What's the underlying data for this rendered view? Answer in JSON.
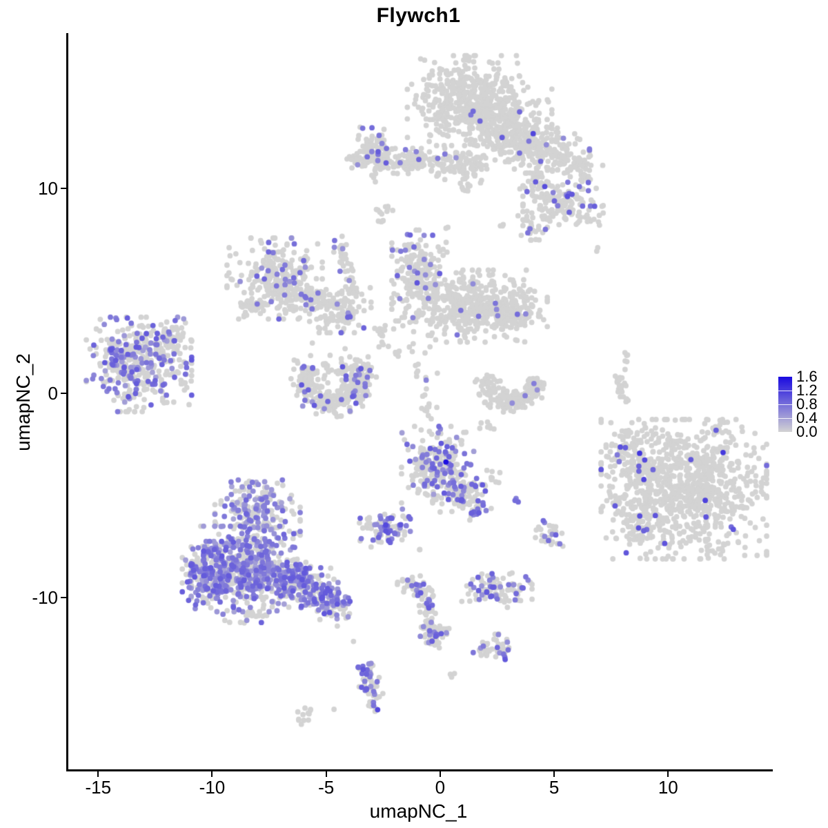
{
  "title": "Flywch1",
  "axes": {
    "x": {
      "label": "umapNC_1",
      "ticks": [
        -15,
        -10,
        -5,
        0,
        5,
        10
      ],
      "range": [
        -16.4,
        14.5
      ]
    },
    "y": {
      "label": "umapNC_2",
      "ticks": [
        -10,
        0,
        10
      ],
      "range": [
        -18.4,
        17.6
      ]
    }
  },
  "legend": {
    "tick_labels": [
      "1.6",
      "1.2",
      "0.8",
      "0.4",
      "0.0"
    ],
    "vmin": 0.0,
    "vmax": 1.6
  },
  "colors": {
    "low": "#d3d3d3",
    "high": "#1a0ae0",
    "gray_point": "#d3d3d3",
    "axis": "#000000"
  },
  "chart_data": {
    "type": "scatter",
    "title": "Flywch1",
    "xlabel": "umapNC_1",
    "ylabel": "umapNC_2",
    "xlim": [
      -16.4,
      14.5
    ],
    "ylim": [
      -18.4,
      17.6
    ],
    "legend_scale": {
      "min": 0.0,
      "max": 1.6,
      "breaks": [
        0.0,
        0.4,
        0.8,
        1.2,
        1.6
      ]
    },
    "point_radius": 3.9,
    "seed": 42,
    "description": "UMAP feature plot of Flywch1 expression; clusters given as generative specs (t: b=blob, a=arc, l=line; coords in data units; f=fraction expressing; v=[min,max] expression of expressing cells)",
    "clusters": [
      {
        "t": "b",
        "x": 1.0,
        "y": 14.3,
        "sx": 1.15,
        "sy": 1.0,
        "n": 380,
        "f": 0.012,
        "v": [
          0.5,
          0.9
        ]
      },
      {
        "t": "b",
        "x": 2.5,
        "y": 13.4,
        "sx": 1.05,
        "sy": 0.95,
        "n": 300,
        "f": 0.015,
        "v": [
          0.5,
          0.9
        ]
      },
      {
        "t": "b",
        "x": 3.6,
        "y": 12.2,
        "sx": 0.5,
        "sy": 0.5,
        "n": 80,
        "f": 0.02,
        "v": [
          0.5,
          0.9
        ]
      },
      {
        "t": "b",
        "x": 3.0,
        "y": 12.6,
        "sx": 0.45,
        "sy": 0.5,
        "n": 55,
        "f": 0.04,
        "v": [
          0.9,
          1.2
        ]
      },
      {
        "t": "b",
        "x": 4.7,
        "y": 11.8,
        "sx": 0.8,
        "sy": 0.55,
        "n": 120,
        "f": 0.02,
        "v": [
          0.5,
          0.8
        ]
      },
      {
        "t": "b",
        "x": 6.05,
        "y": 11.05,
        "sx": 0.45,
        "sy": 0.4,
        "n": 45,
        "f": 0.02,
        "v": [
          0.5,
          0.8
        ]
      },
      {
        "t": "b",
        "x": 4.05,
        "y": 10.3,
        "sx": 0.35,
        "sy": 0.4,
        "n": 40,
        "f": 0.05,
        "v": [
          0.8,
          1.1
        ]
      },
      {
        "t": "b",
        "x": 5.3,
        "y": 9.1,
        "sx": 0.8,
        "sy": 0.55,
        "n": 140,
        "f": 0.11,
        "v": [
          0.6,
          1.1
        ]
      },
      {
        "t": "b",
        "x": 3.95,
        "y": 8.25,
        "sx": 0.3,
        "sy": 0.35,
        "n": 25,
        "f": 0.06,
        "v": [
          0.5,
          0.9
        ]
      },
      {
        "t": "l",
        "x1": 1.9,
        "y1": 11.8,
        "x2": 0.9,
        "y2": 9.7,
        "w": 0.25,
        "n": 28,
        "f": 0.04,
        "v": [
          0.5,
          0.8
        ]
      },
      {
        "t": "b",
        "x": 2.6,
        "y": 8.3,
        "sx": 0.12,
        "sy": 0.12,
        "n": 3,
        "f": 0,
        "v": [
          0.5,
          0.8
        ]
      },
      {
        "t": "b",
        "x": 0.1,
        "y": 8.0,
        "sx": 0.1,
        "sy": 0.1,
        "n": 2,
        "f": 0,
        "v": [
          0.5,
          0.8
        ]
      },
      {
        "t": "b",
        "x": -2.9,
        "y": 11.9,
        "sx": 0.38,
        "sy": 0.5,
        "n": 85,
        "f": 0.1,
        "v": [
          0.6,
          1.0
        ]
      },
      {
        "t": "b",
        "x": -1.4,
        "y": 11.35,
        "sx": 1.05,
        "sy": 0.28,
        "n": 140,
        "f": 0.04,
        "v": [
          0.5,
          0.9
        ]
      },
      {
        "t": "b",
        "x": 0.75,
        "y": 11.1,
        "sx": 0.55,
        "sy": 0.3,
        "n": 55,
        "f": 0.03,
        "v": [
          0.5,
          0.9
        ]
      },
      {
        "t": "b",
        "x": -3.75,
        "y": 11.45,
        "sx": 0.2,
        "sy": 0.2,
        "n": 14,
        "f": 0,
        "v": [
          0.5,
          0.9
        ]
      },
      {
        "t": "b",
        "x": -3.0,
        "y": 10.5,
        "sx": 0.12,
        "sy": 0.15,
        "n": 4,
        "f": 0,
        "v": [
          0.5,
          0.9
        ]
      },
      {
        "t": "b",
        "x": -2.75,
        "y": 8.65,
        "sx": 0.15,
        "sy": 0.28,
        "n": 8,
        "f": 0,
        "v": [
          0.5,
          0.9
        ]
      },
      {
        "t": "b",
        "x": 6.8,
        "y": 7.0,
        "sx": 0.1,
        "sy": 0.1,
        "n": 2,
        "f": 0,
        "v": [
          0.5,
          0.9
        ]
      },
      {
        "t": "l",
        "x1": -4.5,
        "y1": 7.3,
        "x2": -3.85,
        "y2": 4.9,
        "w": 0.16,
        "n": 40,
        "f": 0.05,
        "v": [
          0.5,
          0.8
        ]
      },
      {
        "t": "b",
        "x": -4.5,
        "y": 7.6,
        "sx": 0.1,
        "sy": 0.1,
        "n": 2,
        "f": 0.9,
        "v": [
          0.7,
          0.9
        ]
      },
      {
        "t": "b",
        "x": -7.35,
        "y": 5.6,
        "sx": 0.95,
        "sy": 0.9,
        "n": 250,
        "f": 0.1,
        "v": [
          0.5,
          0.9
        ]
      },
      {
        "t": "b",
        "x": -8.3,
        "y": 4.3,
        "sx": 0.35,
        "sy": 0.3,
        "n": 28,
        "f": 0.08,
        "v": [
          0.5,
          0.9
        ]
      },
      {
        "t": "b",
        "x": -5.9,
        "y": 4.6,
        "sx": 0.6,
        "sy": 0.35,
        "n": 70,
        "f": 0.04,
        "v": [
          0.5,
          0.9
        ],
        "rot": -15
      },
      {
        "t": "b",
        "x": -4.55,
        "y": 4.05,
        "sx": 0.65,
        "sy": 0.5,
        "n": 115,
        "f": 0.07,
        "v": [
          0.5,
          0.9
        ]
      },
      {
        "t": "b",
        "x": -1.0,
        "y": 6.1,
        "sx": 0.55,
        "sy": 0.85,
        "n": 150,
        "f": 0.13,
        "v": [
          0.5,
          1.0
        ]
      },
      {
        "t": "b",
        "x": 1.2,
        "y": 4.25,
        "sx": 1.55,
        "sy": 0.8,
        "n": 470,
        "f": 0.02,
        "v": [
          0.5,
          0.9
        ]
      },
      {
        "t": "b",
        "x": 2.95,
        "y": 4.05,
        "sx": 0.5,
        "sy": 0.5,
        "n": 80,
        "f": 0.03,
        "v": [
          0.5,
          0.9
        ]
      },
      {
        "t": "l",
        "x1": -2.9,
        "y1": 3.3,
        "x2": -1.9,
        "y2": 1.8,
        "w": 0.25,
        "n": 20,
        "f": 0.05,
        "v": [
          0.5,
          0.9
        ]
      },
      {
        "t": "l",
        "x1": -1.3,
        "y1": 2.6,
        "x2": -0.3,
        "y2": -1.4,
        "w": 0.3,
        "n": 26,
        "f": 0.04,
        "v": [
          0.5,
          0.9
        ]
      },
      {
        "t": "b",
        "x": -13.3,
        "y": 1.4,
        "sx": 1.05,
        "sy": 1.05,
        "n": 400,
        "f": 0.3,
        "v": [
          0.4,
          1.0
        ]
      },
      {
        "t": "b",
        "x": -11.9,
        "y": 2.75,
        "sx": 0.4,
        "sy": 0.4,
        "n": 48,
        "f": 0.15,
        "v": [
          0.4,
          0.9
        ]
      },
      {
        "t": "b",
        "x": -11.3,
        "y": 0.7,
        "sx": 0.2,
        "sy": 0.3,
        "n": 8,
        "f": 0.15,
        "v": [
          0.4,
          0.9
        ]
      },
      {
        "t": "a",
        "x": -4.8,
        "y": 0.75,
        "r": 1.25,
        "th": 0.6,
        "a0": 150,
        "a1": 395,
        "n": 300,
        "f": 0.12,
        "v": [
          0.5,
          1.0
        ]
      },
      {
        "t": "b",
        "x": -4.6,
        "y": 1.35,
        "sx": 0.7,
        "sy": 0.5,
        "n": 40,
        "f": 0.03,
        "v": [
          0.5,
          1.0
        ]
      },
      {
        "t": "a",
        "x": 3.05,
        "y": 0.55,
        "r": 1.05,
        "th": 0.5,
        "a0": 160,
        "a1": 370,
        "n": 180,
        "f": 0.015,
        "v": [
          0.5,
          0.8
        ]
      },
      {
        "t": "l",
        "x1": 7.75,
        "y1": 1.2,
        "x2": 7.9,
        "y2": -0.5,
        "w": 0.12,
        "n": 26,
        "f": 0.03,
        "v": [
          0.5,
          0.8
        ]
      },
      {
        "t": "b",
        "x": 8.05,
        "y": 1.7,
        "sx": 0.1,
        "sy": 0.15,
        "n": 5,
        "f": 0,
        "v": [
          0.5,
          0.8
        ]
      },
      {
        "t": "b",
        "x": -0.2,
        "y": -3.5,
        "sx": 0.72,
        "sy": 0.85,
        "n": 250,
        "f": 0.27,
        "v": [
          0.4,
          1.0
        ]
      },
      {
        "t": "b",
        "x": 0.15,
        "y": -3.35,
        "sx": 0.05,
        "sy": 0.05,
        "n": 1,
        "f": 1,
        "v": [
          1.55,
          1.6
        ]
      },
      {
        "t": "b",
        "x": 0.9,
        "y": -4.9,
        "sx": 0.45,
        "sy": 0.5,
        "n": 85,
        "f": 0.3,
        "v": [
          0.5,
          1.0
        ]
      },
      {
        "t": "b",
        "x": 1.6,
        "y": -5.6,
        "sx": 0.25,
        "sy": 0.3,
        "n": 22,
        "f": 0.35,
        "v": [
          0.6,
          1.0
        ]
      },
      {
        "t": "b",
        "x": 2.3,
        "y": -4.05,
        "sx": 0.2,
        "sy": 0.2,
        "n": 9,
        "f": 0.12,
        "v": [
          0.5,
          0.9
        ]
      },
      {
        "t": "b",
        "x": 3.3,
        "y": -5.3,
        "sx": 0.1,
        "sy": 0.1,
        "n": 3,
        "f": 0.7,
        "v": [
          0.6,
          0.9
        ]
      },
      {
        "t": "b",
        "x": -2.5,
        "y": -6.6,
        "sx": 0.5,
        "sy": 0.42,
        "n": 80,
        "f": 0.45,
        "v": [
          0.5,
          1.1
        ]
      },
      {
        "t": "b",
        "x": -3.3,
        "y": -6.2,
        "sx": 0.15,
        "sy": 0.15,
        "n": 5,
        "f": 0.3,
        "v": [
          0.5,
          1.0
        ]
      },
      {
        "t": "b",
        "x": -8.7,
        "y": -8.6,
        "sx": 1.05,
        "sy": 0.95,
        "n": 500,
        "f": 0.55,
        "v": [
          0.35,
          0.95
        ]
      },
      {
        "t": "b",
        "x": -8.1,
        "y": -5.9,
        "sx": 0.85,
        "sy": 0.75,
        "n": 210,
        "f": 0.45,
        "v": [
          0.35,
          0.9
        ]
      },
      {
        "t": "b",
        "x": -10.3,
        "y": -8.9,
        "sx": 0.5,
        "sy": 0.75,
        "n": 160,
        "f": 0.6,
        "v": [
          0.4,
          1.0
        ]
      },
      {
        "t": "b",
        "x": -6.4,
        "y": -9.3,
        "sx": 0.8,
        "sy": 0.55,
        "n": 190,
        "f": 0.5,
        "v": [
          0.4,
          1.0
        ],
        "rot": -20
      },
      {
        "t": "b",
        "x": -4.9,
        "y": -10.2,
        "sx": 0.55,
        "sy": 0.45,
        "n": 110,
        "f": 0.45,
        "v": [
          0.4,
          1.0
        ],
        "rot": -25
      },
      {
        "t": "b",
        "x": -8.6,
        "y": -10.7,
        "sx": 0.5,
        "sy": 0.3,
        "n": 22,
        "f": 0.25,
        "v": [
          0.4,
          0.9
        ]
      },
      {
        "t": "b",
        "x": -1.0,
        "y": -7.7,
        "sx": 0.1,
        "sy": 0.1,
        "n": 2,
        "f": 0,
        "v": [
          0.5,
          0.9
        ]
      },
      {
        "t": "b",
        "x": 10.6,
        "y": -4.7,
        "sx": 1.65,
        "sy": 1.55,
        "n": 900,
        "f": 0.02,
        "v": [
          0.8,
          1.3
        ]
      },
      {
        "t": "b",
        "x": 8.15,
        "y": -3.1,
        "sx": 0.5,
        "sy": 0.75,
        "n": 95,
        "f": 0.05,
        "v": [
          0.7,
          1.2
        ]
      },
      {
        "t": "b",
        "x": 8.6,
        "y": -6.4,
        "sx": 0.5,
        "sy": 0.45,
        "n": 75,
        "f": 0.06,
        "v": [
          0.7,
          1.2
        ]
      },
      {
        "t": "b",
        "x": 12.3,
        "y": -1.9,
        "sx": 0.3,
        "sy": 0.25,
        "n": 12,
        "f": 0,
        "v": [
          0.8,
          1.2
        ]
      },
      {
        "t": "b",
        "x": 4.75,
        "y": -6.9,
        "sx": 0.3,
        "sy": 0.3,
        "n": 26,
        "f": 0.3,
        "v": [
          0.5,
          0.9
        ]
      },
      {
        "t": "b",
        "x": 2.4,
        "y": -9.6,
        "sx": 0.7,
        "sy": 0.4,
        "n": 95,
        "f": 0.33,
        "v": [
          0.5,
          1.0
        ]
      },
      {
        "t": "b",
        "x": 2.35,
        "y": -12.5,
        "sx": 0.45,
        "sy": 0.33,
        "n": 48,
        "f": 0.25,
        "v": [
          0.5,
          1.0
        ]
      },
      {
        "t": "l",
        "x1": -1.0,
        "y1": -9.3,
        "x2": -0.35,
        "y2": -11.9,
        "w": 0.2,
        "n": 70,
        "f": 0.25,
        "v": [
          0.5,
          1.0
        ]
      },
      {
        "t": "b",
        "x": -1.35,
        "y": -9.4,
        "sx": 0.28,
        "sy": 0.22,
        "n": 25,
        "f": 0.12,
        "v": [
          0.5,
          1.0
        ]
      },
      {
        "t": "b",
        "x": -0.3,
        "y": -11.9,
        "sx": 0.3,
        "sy": 0.28,
        "n": 40,
        "f": 0.3,
        "v": [
          0.5,
          1.0
        ]
      },
      {
        "t": "b",
        "x": -0.62,
        "y": -10.3,
        "sx": 0.06,
        "sy": 0.06,
        "n": 1,
        "f": 1,
        "v": [
          0.8,
          0.9
        ]
      },
      {
        "t": "l",
        "x1": -3.45,
        "y1": -13.3,
        "x2": -2.95,
        "y2": -15.0,
        "w": 0.22,
        "n": 55,
        "f": 0.4,
        "v": [
          0.5,
          1.0
        ]
      },
      {
        "t": "b",
        "x": -3.05,
        "y": -15.3,
        "sx": 0.15,
        "sy": 0.12,
        "n": 10,
        "f": 0.5,
        "v": [
          0.6,
          1.1
        ]
      },
      {
        "t": "b",
        "x": -6.1,
        "y": -15.8,
        "sx": 0.25,
        "sy": 0.18,
        "n": 12,
        "f": 0,
        "v": [
          0.5,
          1.0
        ]
      },
      {
        "t": "b",
        "x": -4.75,
        "y": -15.45,
        "sx": 0.06,
        "sy": 0.06,
        "n": 1,
        "f": 0,
        "v": [
          0.5,
          1.0
        ]
      },
      {
        "t": "b",
        "x": -3.9,
        "y": -12.2,
        "sx": 0.06,
        "sy": 0.06,
        "n": 1,
        "f": 0,
        "v": [
          0.5,
          1.0
        ]
      },
      {
        "t": "b",
        "x": 0.4,
        "y": -13.8,
        "sx": 0.12,
        "sy": 0.1,
        "n": 3,
        "f": 0,
        "v": [
          0.5,
          1.0
        ]
      },
      {
        "t": "b",
        "x": 2.0,
        "y": -1.6,
        "sx": 0.2,
        "sy": 0.15,
        "n": 7,
        "f": 0,
        "v": [
          0.5,
          1.0
        ]
      },
      {
        "t": "b",
        "x": -2.4,
        "y": 8.9,
        "sx": 0.12,
        "sy": 0.2,
        "n": 5,
        "f": 0,
        "v": [
          0.5,
          1.0
        ]
      }
    ]
  }
}
